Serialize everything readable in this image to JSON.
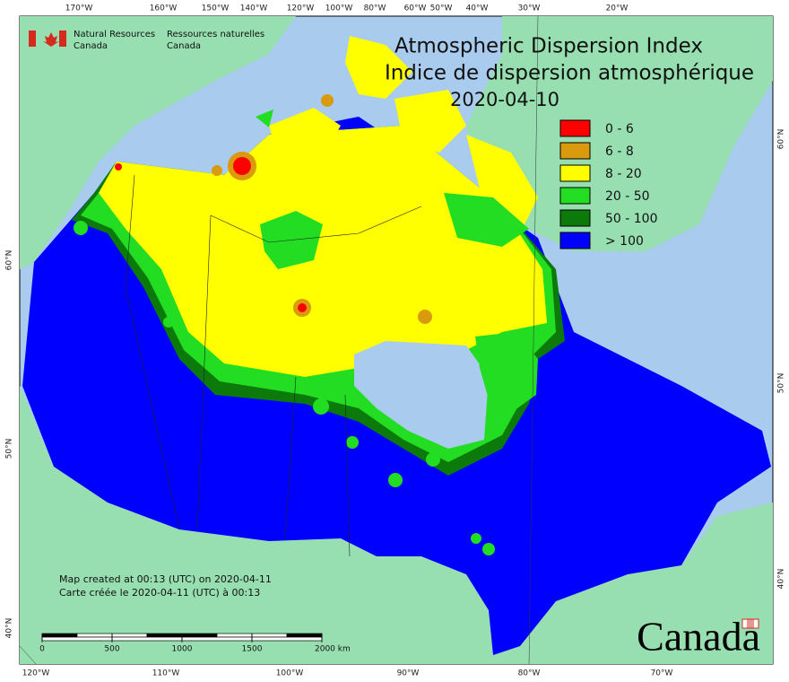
{
  "agency": {
    "english": [
      "Natural Resources",
      "Canada"
    ],
    "french": [
      "Ressources naturelles",
      "Canada"
    ]
  },
  "title": [
    "Atmospheric Dispersion Index",
    "Indice de dispersion atmosphérique"
  ],
  "date": "2020-04-10",
  "legend": [
    {
      "label": "0 - 6",
      "color": "#ff0000"
    },
    {
      "label": "6 - 8",
      "color": "#d99a0e"
    },
    {
      "label": "8 - 20",
      "color": "#ffff00"
    },
    {
      "label": "20 - 50",
      "color": "#22dd22"
    },
    {
      "label": "50 - 100",
      "color": "#0b7a0b"
    },
    {
      "label": "> 100",
      "color": "#0000ff"
    }
  ],
  "credits": [
    "Map created at 00:13 (UTC) on 2020-04-11",
    "Carte créée le 2020-04-11 (UTC) à 00:13"
  ],
  "scale_bar": [
    0,
    500,
    1000,
    1500,
    {
      "value": 2000,
      "label": "2000 km"
    }
  ],
  "graticule": {
    "top": [
      "170°W",
      "160°W",
      "150°W",
      "140°W",
      "120°W",
      "100°W",
      "80°W",
      "60°W",
      "50°W",
      "40°W",
      "30°W",
      "20°W"
    ],
    "bottom": [
      "120°W",
      "110°W",
      "100°W",
      "90°W",
      "80°W",
      "70°W"
    ],
    "left": [
      "60°N",
      "50°N",
      "40°N"
    ],
    "right": [
      "60°N",
      "50°N",
      "40°N"
    ]
  },
  "wordmark": "Canada"
}
